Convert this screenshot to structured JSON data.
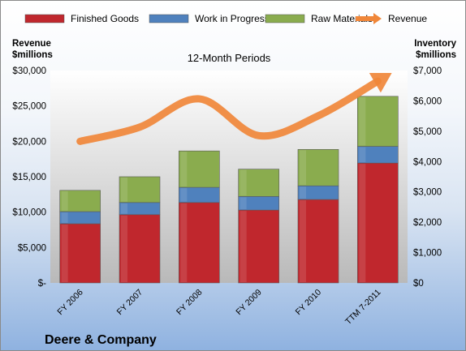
{
  "chart_data": {
    "type": "bar",
    "stacked": true,
    "subtitle": "12-Month Periods",
    "company": "Deere & Company",
    "left_axis_title": [
      "Revenue",
      "$millions"
    ],
    "right_axis_title": [
      "Inventory",
      "$millions"
    ],
    "categories": [
      "FY 2006",
      "FY 2007",
      "FY 2008",
      "FY 2009",
      "FY 2010",
      "TTM 7-2011"
    ],
    "series": [
      {
        "name": "Finished Goods",
        "axis": "right",
        "color": "#c0272d",
        "values": [
          1950,
          2250,
          2650,
          2400,
          2750,
          3950
        ]
      },
      {
        "name": "Work in Progress",
        "axis": "right",
        "color": "#4f81bd",
        "values": [
          400,
          400,
          500,
          450,
          450,
          550
        ]
      },
      {
        "name": "Raw Materials",
        "axis": "right",
        "color": "#8aac4e",
        "values": [
          700,
          850,
          1200,
          900,
          1200,
          1650
        ]
      },
      {
        "name": "Revenue",
        "axis": "left",
        "type": "line",
        "color": "#f0873a",
        "values": [
          20000,
          22000,
          26000,
          20800,
          23600,
          28500
        ]
      }
    ],
    "left_axis": {
      "min": 0,
      "max": 30000,
      "step": 5000,
      "tick_labels": [
        "$-",
        "$5,000",
        "$10,000",
        "$15,000",
        "$20,000",
        "$25,000",
        "$30,000"
      ]
    },
    "right_axis": {
      "min": 0,
      "max": 7000,
      "step": 1000,
      "tick_labels": [
        "$0",
        "$1,000",
        "$2,000",
        "$3,000",
        "$4,000",
        "$5,000",
        "$6,000",
        "$7,000"
      ]
    },
    "legend_position": "top",
    "grid": false
  }
}
